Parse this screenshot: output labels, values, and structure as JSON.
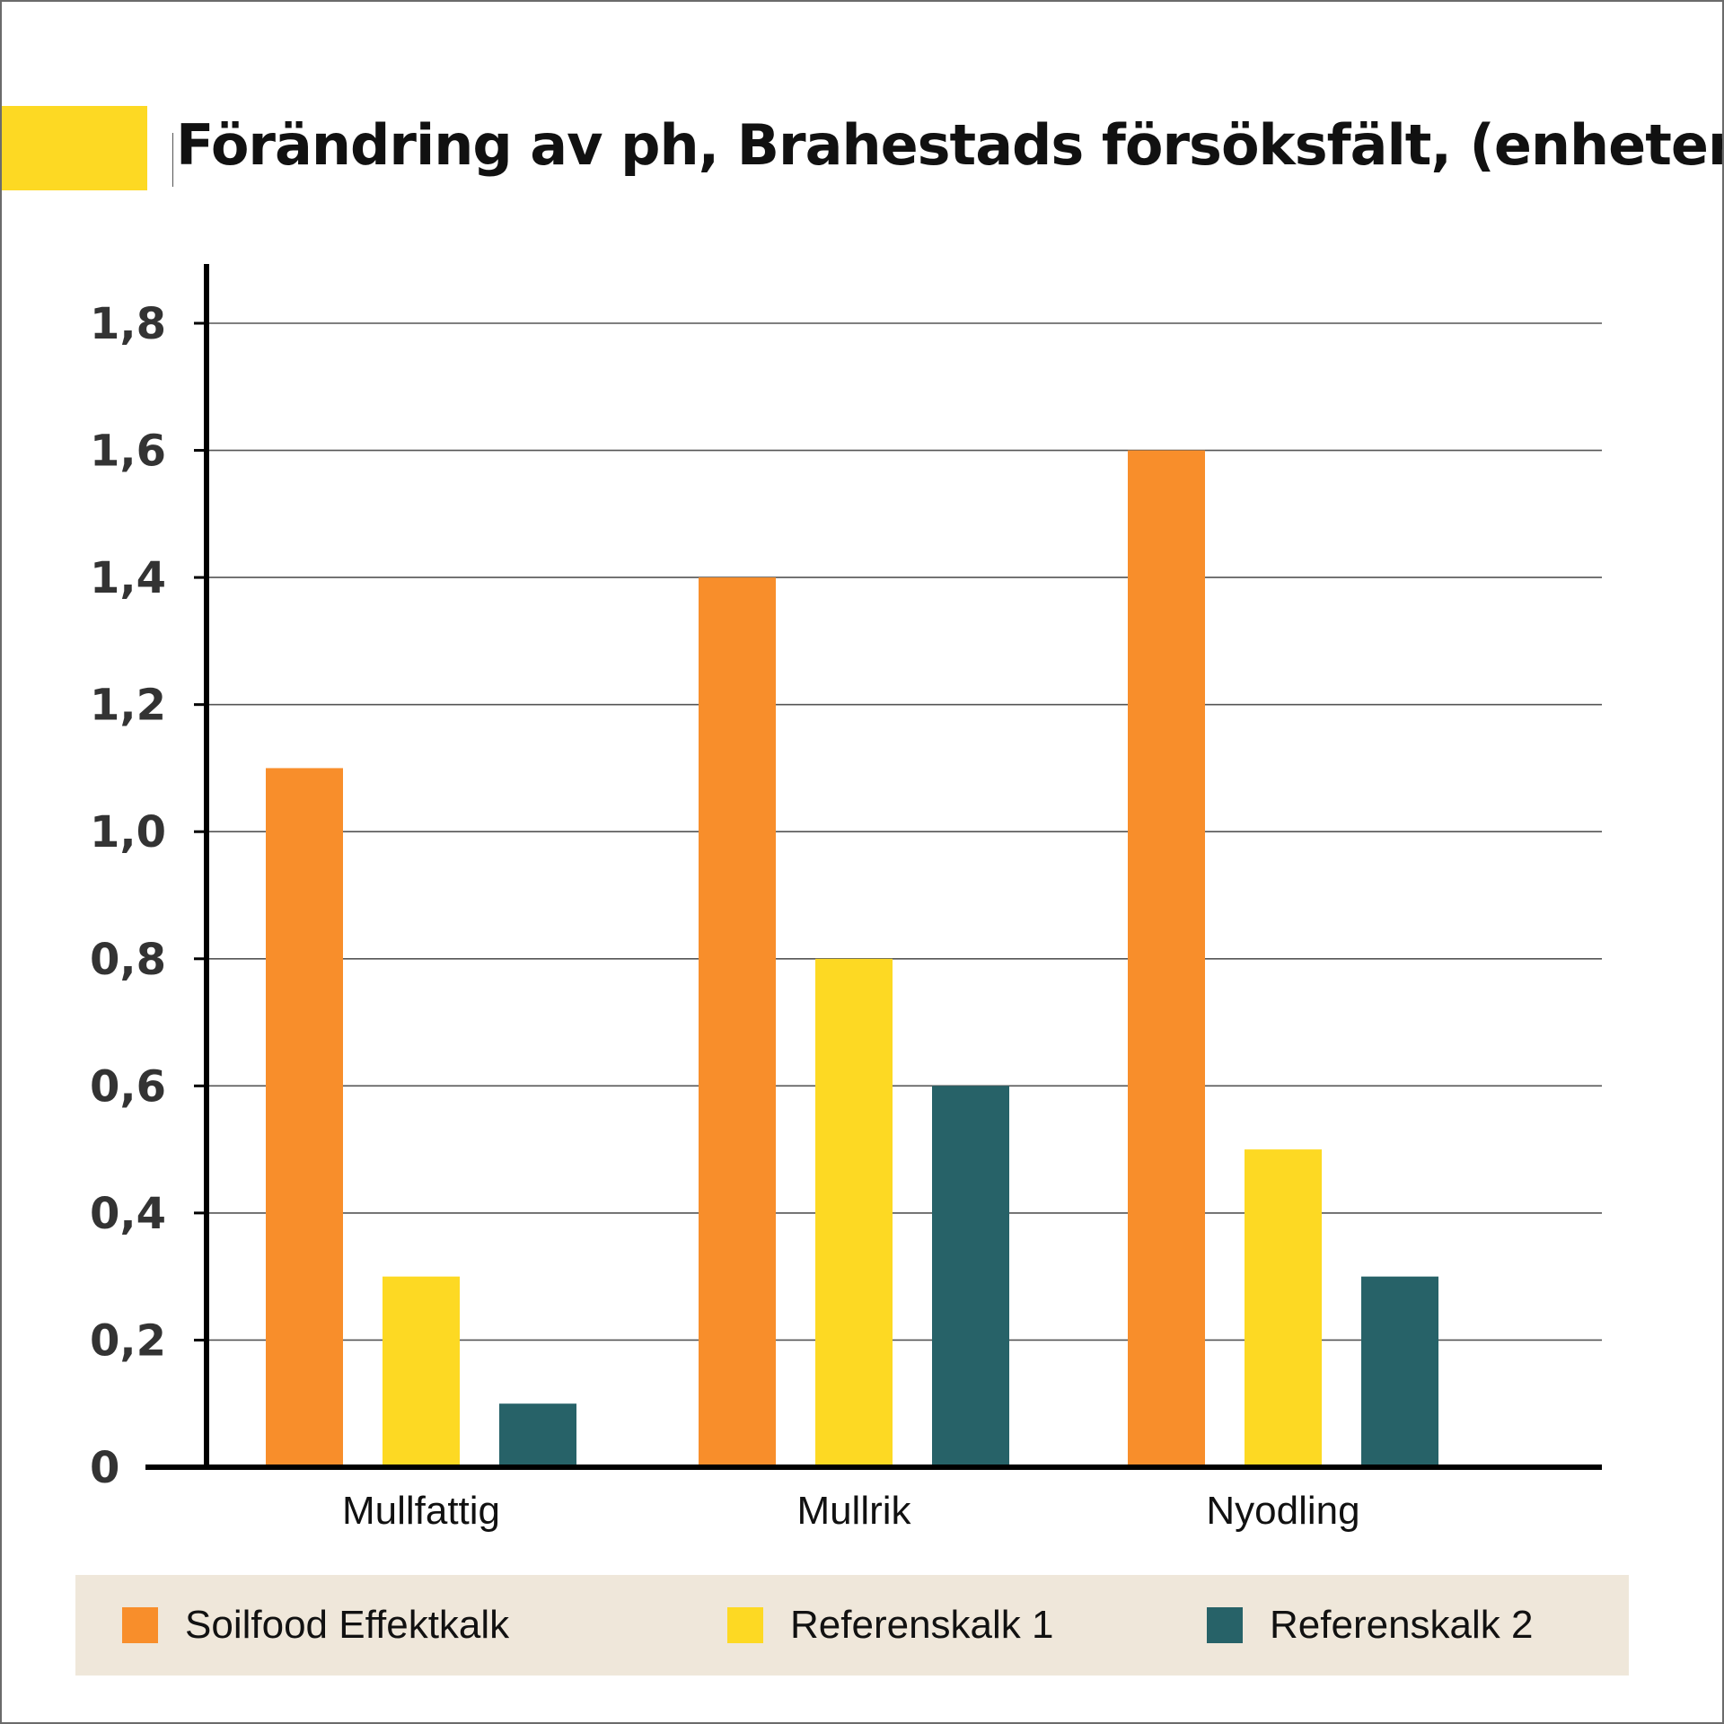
{
  "chart_data": {
    "type": "bar",
    "title": "Förändring av ph, Brahestads försöksfält, (enheter)",
    "xlabel": "",
    "ylabel": "",
    "categories": [
      "Mullfattig",
      "Mullrik",
      "Nyodling"
    ],
    "series": [
      {
        "name": "Soilfood Effektkalk",
        "color": "#f88e2b",
        "values": [
          1.1,
          1.4,
          1.6
        ]
      },
      {
        "name": "Referenskalk 1",
        "color": "#fdd923",
        "values": [
          0.3,
          0.8,
          0.5
        ]
      },
      {
        "name": "Referenskalk 2",
        "color": "#276268",
        "values": [
          0.1,
          0.6,
          0.3
        ]
      }
    ],
    "ylim": [
      0,
      1.8
    ],
    "yticks": [
      0,
      0.2,
      0.4,
      0.6,
      0.8,
      1.0,
      1.2,
      1.4,
      1.6,
      1.8
    ],
    "ytick_labels": [
      "0",
      "0,2",
      "0,4",
      "0,6",
      "0,8",
      "1,0",
      "1,2",
      "1,4",
      "1,6",
      "1,8"
    ],
    "grid": true,
    "legend_position": "bottom"
  },
  "colors": {
    "accent": "#fdd923",
    "legend_background": "#efe7da",
    "axis": "#000000"
  }
}
